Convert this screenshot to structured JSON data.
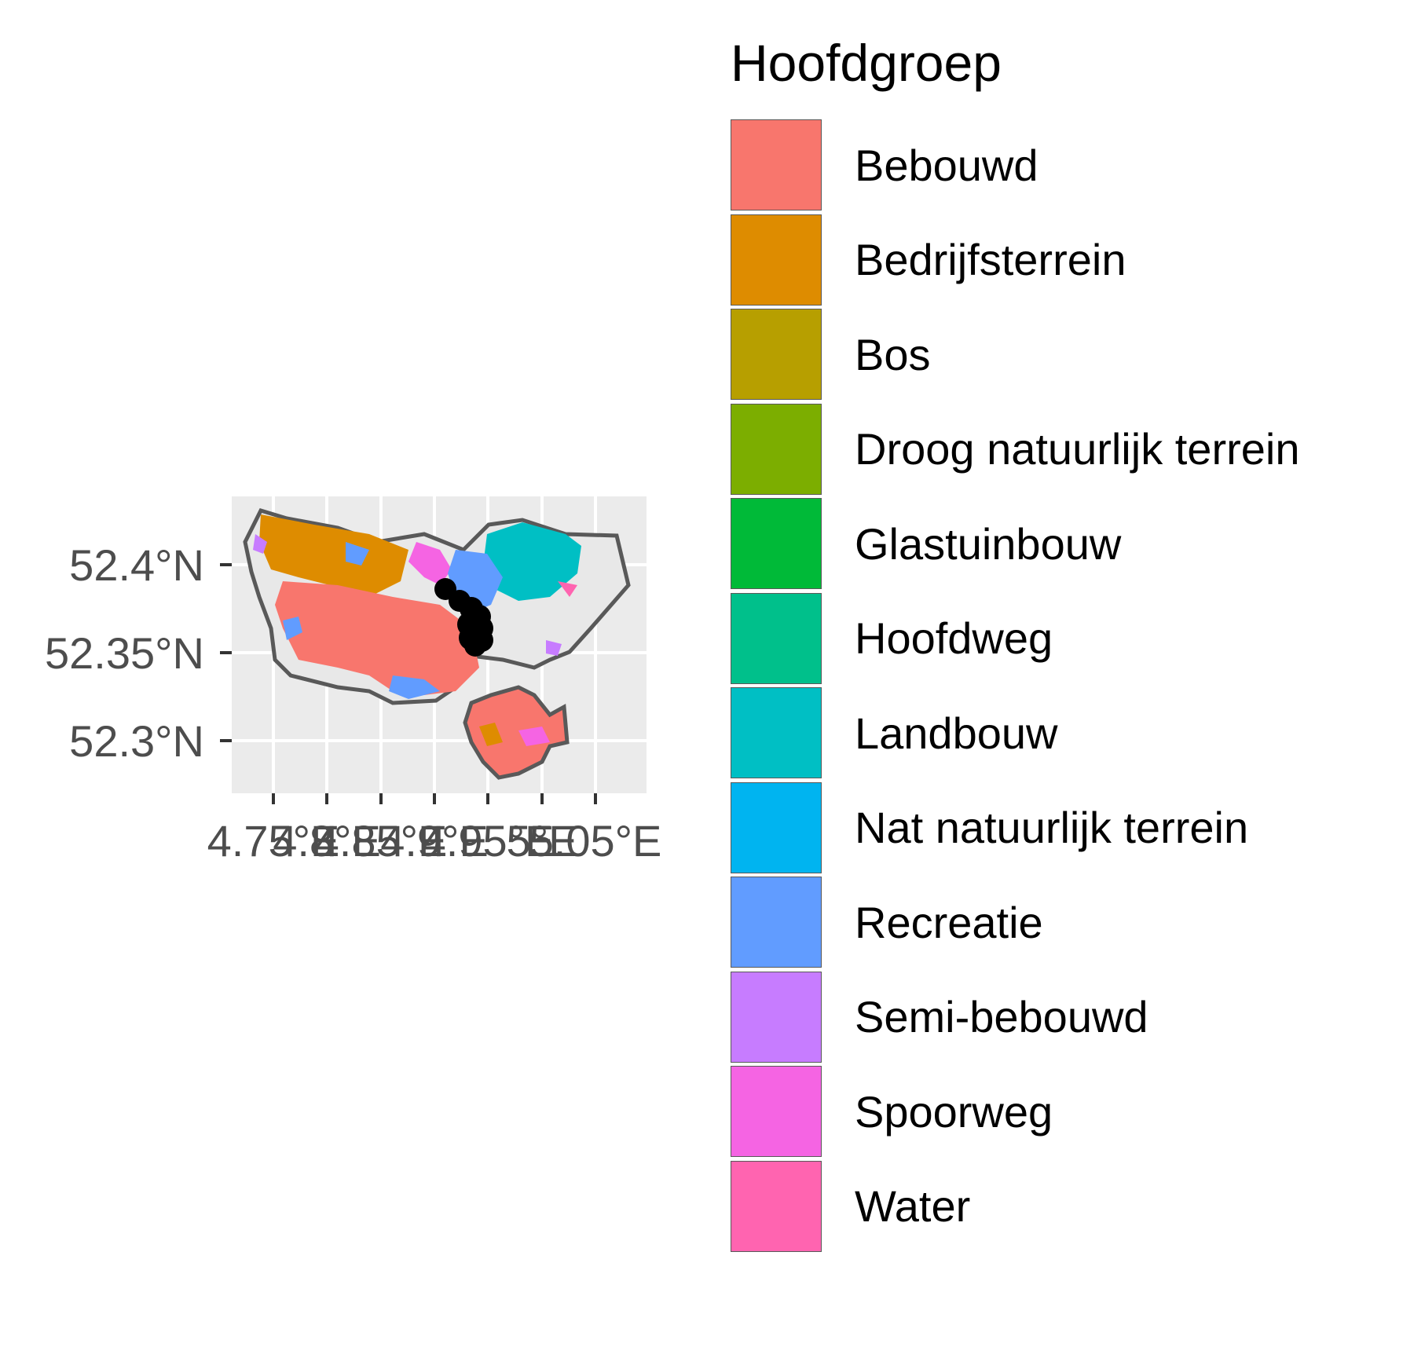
{
  "map": {
    "x_ticks": [
      "4.75°E",
      "4.8°E",
      "4.85°E",
      "4.9°E",
      "4.95°E",
      "5°E",
      "5.05°E"
    ],
    "y_ticks": [
      "52.4°N",
      "52.35°N",
      "52.3°N"
    ]
  },
  "legend": {
    "title": "Hoofdgroep",
    "items": [
      {
        "label": "Bebouwd",
        "color": "#F8766D"
      },
      {
        "label": "Bedrijfsterrein",
        "color": "#DE8C00"
      },
      {
        "label": "Bos",
        "color": "#B79F00"
      },
      {
        "label": "Droog natuurlijk terrein",
        "color": "#7CAE00"
      },
      {
        "label": "Glastuinbouw",
        "color": "#00BA38"
      },
      {
        "label": "Hoofdweg",
        "color": "#00C08B"
      },
      {
        "label": "Landbouw",
        "color": "#00BFC4"
      },
      {
        "label": "Nat natuurlijk terrein",
        "color": "#00B4F0"
      },
      {
        "label": "Recreatie",
        "color": "#619CFF"
      },
      {
        "label": "Semi-bebouwd",
        "color": "#C77CFF"
      },
      {
        "label": "Spoorweg",
        "color": "#F564E3"
      },
      {
        "label": "Water",
        "color": "#FF64B0"
      }
    ]
  }
}
